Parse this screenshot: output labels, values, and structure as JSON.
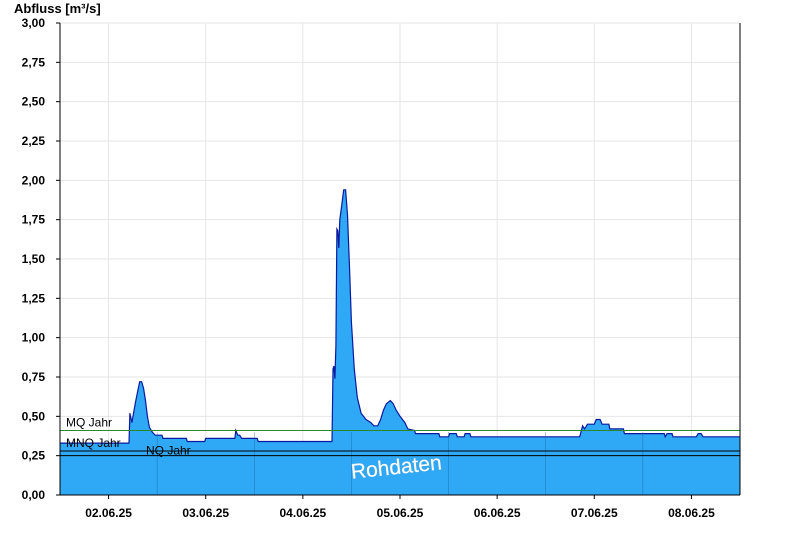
{
  "chart_data": {
    "type": "area",
    "title": "",
    "ylabel": "Abfluss [m³/s]",
    "xlabel": "",
    "ylim": [
      0,
      3.0
    ],
    "y_ticks": [
      "0,00",
      "0,25",
      "0,50",
      "0,75",
      "1,00",
      "1,25",
      "1,50",
      "1,75",
      "2,00",
      "2,25",
      "2,50",
      "2,75",
      "3,00"
    ],
    "x_range_days": [
      1.5,
      8.5
    ],
    "x_ticks": [
      {
        "day": 2,
        "label": "02.06.25"
      },
      {
        "day": 3,
        "label": "03.06.25"
      },
      {
        "day": 4,
        "label": "04.06.25"
      },
      {
        "day": 5,
        "label": "05.06.25"
      },
      {
        "day": 6,
        "label": "06.06.25"
      },
      {
        "day": 7,
        "label": "07.06.25"
      },
      {
        "day": 8,
        "label": "08.06.25"
      }
    ],
    "grid": true,
    "fill_color": "#2fa8f5",
    "line_color": "#0a1aa0",
    "reference_lines": [
      {
        "name": "MQ Jahr",
        "value": 0.41,
        "color": "#2a8a2a"
      },
      {
        "name": "MNQ Jahr",
        "value": 0.28,
        "color": "#000000"
      },
      {
        "name": "NQ Jahr",
        "value": 0.25,
        "color": "#000000"
      }
    ],
    "watermark": "Rohdaten",
    "series": [
      {
        "points": [
          [
            1.5,
            0.33
          ],
          [
            2.21,
            0.33
          ],
          [
            2.22,
            0.52
          ],
          [
            2.24,
            0.46
          ],
          [
            2.26,
            0.53
          ],
          [
            2.28,
            0.6
          ],
          [
            2.3,
            0.66
          ],
          [
            2.32,
            0.72
          ],
          [
            2.34,
            0.72
          ],
          [
            2.36,
            0.68
          ],
          [
            2.38,
            0.6
          ],
          [
            2.4,
            0.5
          ],
          [
            2.42,
            0.43
          ],
          [
            2.45,
            0.4
          ],
          [
            2.48,
            0.38
          ],
          [
            2.55,
            0.38
          ],
          [
            2.56,
            0.36
          ],
          [
            2.8,
            0.36
          ],
          [
            2.81,
            0.34
          ],
          [
            2.99,
            0.34
          ],
          [
            3.0,
            0.36
          ],
          [
            3.3,
            0.36
          ],
          [
            3.31,
            0.41
          ],
          [
            3.33,
            0.38
          ],
          [
            3.35,
            0.38
          ],
          [
            3.37,
            0.36
          ],
          [
            3.53,
            0.36
          ],
          [
            3.54,
            0.34
          ],
          [
            4.3,
            0.34
          ],
          [
            4.31,
            0.8
          ],
          [
            4.32,
            0.82
          ],
          [
            4.33,
            0.74
          ],
          [
            4.34,
            0.95
          ],
          [
            4.35,
            1.69
          ],
          [
            4.36,
            1.68
          ],
          [
            4.37,
            1.57
          ],
          [
            4.38,
            1.75
          ],
          [
            4.4,
            1.84
          ],
          [
            4.42,
            1.94
          ],
          [
            4.44,
            1.94
          ],
          [
            4.46,
            1.78
          ],
          [
            4.48,
            1.45
          ],
          [
            4.5,
            1.1
          ],
          [
            4.53,
            0.8
          ],
          [
            4.56,
            0.62
          ],
          [
            4.6,
            0.52
          ],
          [
            4.65,
            0.48
          ],
          [
            4.7,
            0.46
          ],
          [
            4.73,
            0.44
          ],
          [
            4.77,
            0.44
          ],
          [
            4.8,
            0.48
          ],
          [
            4.83,
            0.54
          ],
          [
            4.86,
            0.58
          ],
          [
            4.9,
            0.6
          ],
          [
            4.93,
            0.58
          ],
          [
            4.96,
            0.54
          ],
          [
            5.0,
            0.5
          ],
          [
            5.05,
            0.46
          ],
          [
            5.08,
            0.42
          ],
          [
            5.15,
            0.41
          ],
          [
            5.16,
            0.39
          ],
          [
            5.4,
            0.39
          ],
          [
            5.41,
            0.37
          ],
          [
            5.5,
            0.37
          ],
          [
            5.51,
            0.39
          ],
          [
            5.58,
            0.39
          ],
          [
            5.59,
            0.37
          ],
          [
            5.66,
            0.37
          ],
          [
            5.67,
            0.39
          ],
          [
            5.72,
            0.39
          ],
          [
            5.73,
            0.37
          ],
          [
            6.85,
            0.37
          ],
          [
            6.88,
            0.44
          ],
          [
            6.9,
            0.42
          ],
          [
            6.93,
            0.45
          ],
          [
            7.0,
            0.45
          ],
          [
            7.02,
            0.48
          ],
          [
            7.06,
            0.48
          ],
          [
            7.08,
            0.45
          ],
          [
            7.15,
            0.45
          ],
          [
            7.16,
            0.42
          ],
          [
            7.3,
            0.42
          ],
          [
            7.31,
            0.39
          ],
          [
            7.72,
            0.39
          ],
          [
            7.73,
            0.37
          ],
          [
            7.75,
            0.39
          ],
          [
            7.8,
            0.39
          ],
          [
            7.81,
            0.37
          ],
          [
            8.05,
            0.37
          ],
          [
            8.07,
            0.39
          ],
          [
            8.1,
            0.39
          ],
          [
            8.12,
            0.37
          ],
          [
            8.5,
            0.37
          ]
        ]
      }
    ]
  }
}
